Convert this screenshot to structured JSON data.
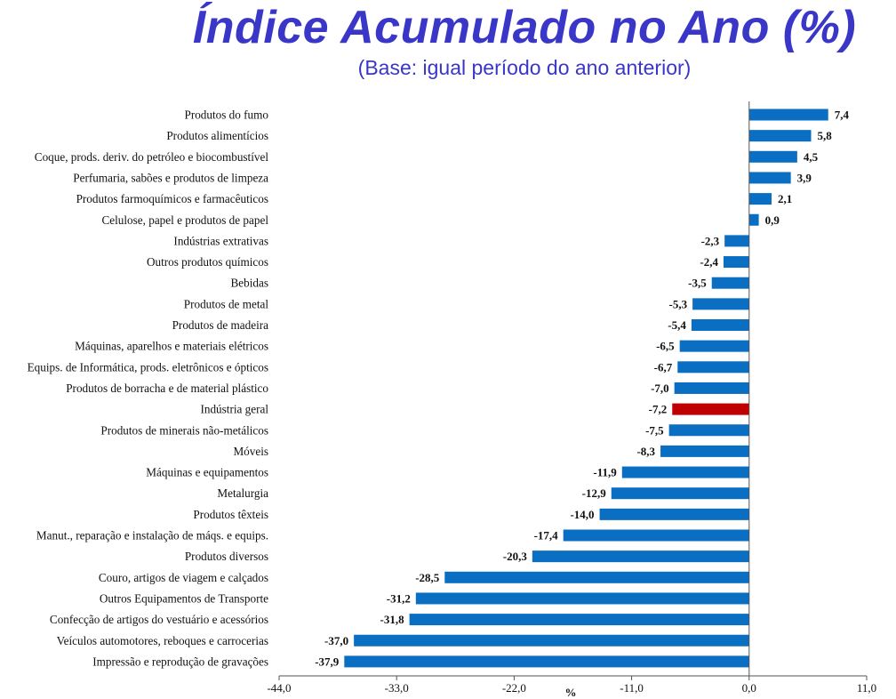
{
  "title": "Índice Acumulado no Ano (%)",
  "subtitle": "(Base: igual período do ano anterior)",
  "colors": {
    "bar": "#0a6fc2",
    "highlight": "#c00000",
    "text": "#111111",
    "axis": "#555555",
    "title": "#3a36c8"
  },
  "chart_data": {
    "type": "bar",
    "orientation": "horizontal",
    "title": "Índice Acumulado no Ano (%)",
    "subtitle": "(Base: igual período do ano anterior)",
    "xlabel": "%",
    "ylabel": "",
    "xlim": [
      -44,
      11
    ],
    "xticks": [
      "-44,0",
      "-33,0",
      "-22,0",
      "-11,0",
      "0,0",
      "11,0"
    ],
    "xtick_values": [
      -44,
      -33,
      -22,
      -11,
      0,
      11
    ],
    "highlight_category": "Indústria geral",
    "categories": [
      "Produtos do fumo",
      "Produtos alimentícios",
      "Coque, prods. deriv. do petróleo e biocombustível",
      "Perfumaria, sabões e produtos de limpeza",
      "Produtos farmoquímicos e farmacêuticos",
      "Celulose, papel e produtos de papel",
      "Indústrias extrativas",
      "Outros produtos químicos",
      "Bebidas",
      "Produtos de metal",
      "Produtos de madeira",
      "Máquinas, aparelhos e materiais elétricos",
      "Equips. de Informática, prods. eletrônicos e ópticos",
      "Produtos de borracha e de material plástico",
      "Indústria geral",
      "Produtos de minerais não-metálicos",
      "Móveis",
      "Máquinas e equipamentos",
      "Metalurgia",
      "Produtos têxteis",
      "Manut., reparação e instalação de máqs. e equips.",
      "Produtos diversos",
      "Couro, artigos de viagem e calçados",
      "Outros Equipamentos de Transporte",
      "Confecção de artigos do vestuário e acessórios",
      "Veículos automotores, reboques e carrocerias",
      "Impressão e reprodução de gravações"
    ],
    "values": [
      7.4,
      5.8,
      4.5,
      3.9,
      2.1,
      0.9,
      -2.3,
      -2.4,
      -3.5,
      -5.3,
      -5.4,
      -6.5,
      -6.7,
      -7.0,
      -7.2,
      -7.5,
      -8.3,
      -11.9,
      -12.9,
      -14.0,
      -17.4,
      -20.3,
      -28.5,
      -31.2,
      -31.8,
      -37.0,
      -37.9
    ],
    "value_labels": [
      "7,4",
      "5,8",
      "4,5",
      "3,9",
      "2,1",
      "0,9",
      "-2,3",
      "-2,4",
      "-3,5",
      "-5,3",
      "-5,4",
      "-6,5",
      "-6,7",
      "-7,0",
      "-7,2",
      "-7,5",
      "-8,3",
      "-11,9",
      "-12,9",
      "-14,0",
      "-17,4",
      "-20,3",
      "-28,5",
      "-31,2",
      "-31,8",
      "-37,0",
      "-37,9"
    ]
  }
}
